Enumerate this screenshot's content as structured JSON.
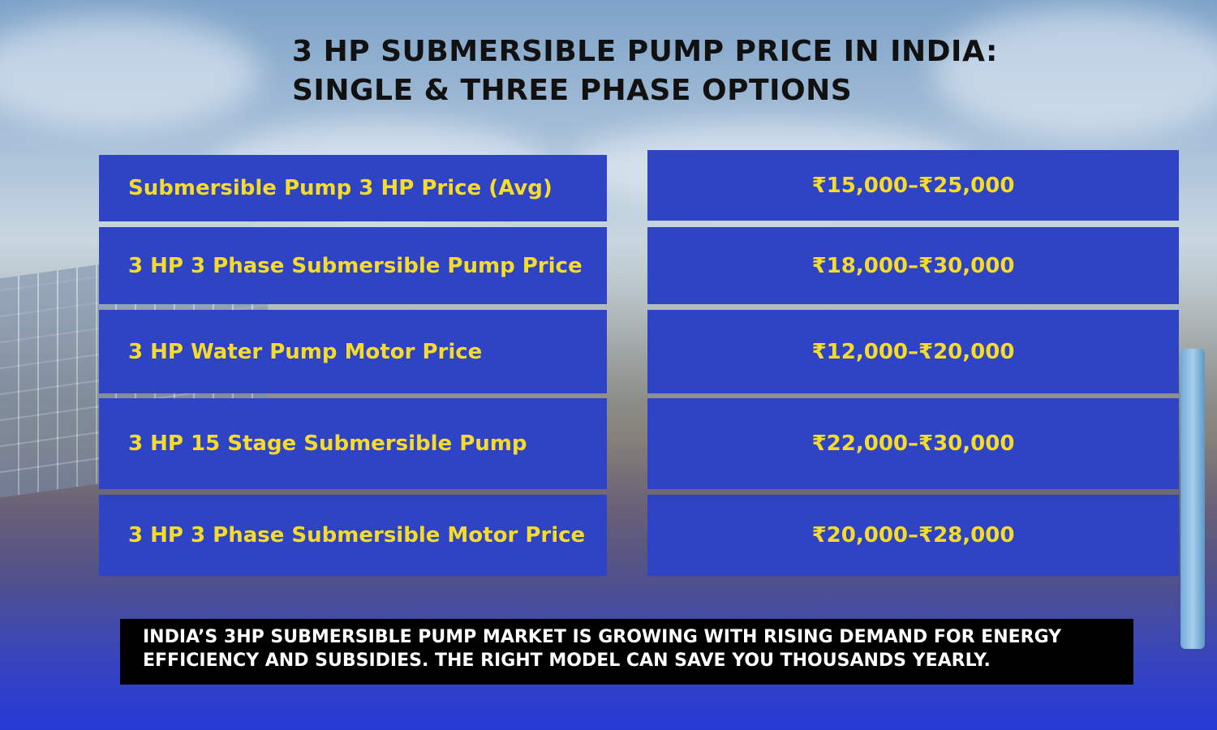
{
  "title": {
    "line1": "3 HP SUBMERSIBLE PUMP PRICE IN INDIA:",
    "line2": "SINGLE & THREE PHASE OPTIONS"
  },
  "rows": [
    {
      "label": "Submersible Pump 3 HP Price (Avg)",
      "price": "₹15,000–₹25,000"
    },
    {
      "label": "3 HP 3 Phase Submersible Pump Price",
      "price": "₹18,000–₹30,000"
    },
    {
      "label": "3 HP Water Pump Motor Price",
      "price": "₹12,000–₹20,000"
    },
    {
      "label": "3 HP 15 Stage Submersible Pump",
      "price": "₹22,000–₹30,000"
    },
    {
      "label": "3 HP 3 Phase Submersible Motor Price",
      "price": "₹20,000–₹28,000"
    }
  ],
  "footer": {
    "line1": "INDIA’S 3HP SUBMERSIBLE PUMP MARKET IS GROWING WITH RISING DEMAND FOR ENERGY",
    "line2": "EFFICIENCY AND SUBSIDIES. THE RIGHT MODEL CAN SAVE YOU THOUSANDS YEARLY."
  },
  "colors": {
    "cell_bg": "#2e44c4",
    "cell_text": "#f6dc2a",
    "title_text": "#111111",
    "footer_bg": "#000000",
    "footer_text": "#ffffff"
  }
}
